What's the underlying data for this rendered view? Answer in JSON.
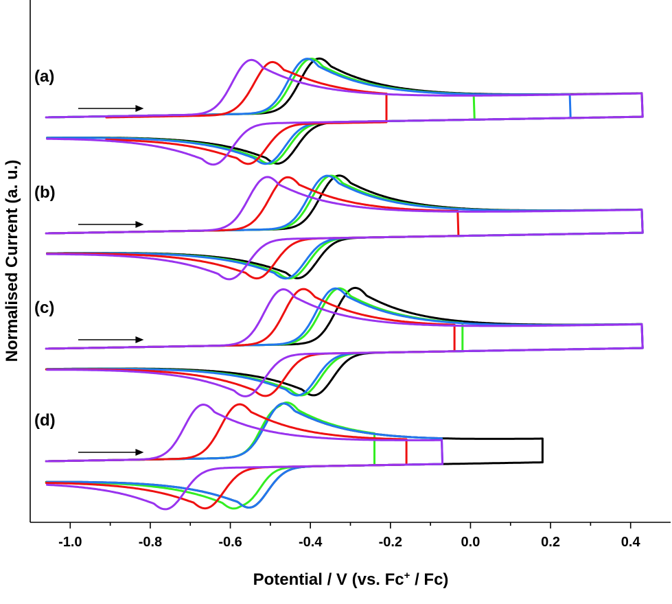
{
  "chart_data": {
    "type": "line",
    "xlabel_main": "Potential / V (vs. Fc",
    "xlabel_sup": "+",
    "xlabel_tail": " / Fc)",
    "ylabel": "Normalised Current (a. u.)",
    "xlim": [
      -1.1,
      0.5
    ],
    "x_ticks": [
      -1.0,
      -0.8,
      -0.6,
      -0.4,
      -0.2,
      0.0,
      0.2,
      0.4
    ],
    "x_tick_labels": [
      "-1.0",
      "-0.8",
      "-0.6",
      "-0.4",
      "-0.2",
      "0.0",
      "0.2",
      "0.4"
    ],
    "y_tick_labels_shown": false,
    "colors": {
      "black": "#000000",
      "red": "#ee1111",
      "purple": "#9933ee",
      "green": "#33ee22",
      "blue": "#2277ee"
    },
    "panels": [
      {
        "label": "(a)",
        "arrow_x": [
          -0.98,
          -0.83
        ],
        "curves": [
          {
            "color": "black",
            "v_start": -1.06,
            "v_end": 0.43,
            "epa": -0.38,
            "epc": -0.48
          },
          {
            "color": "green",
            "v_start": -1.06,
            "v_end": 0.01,
            "epa": -0.4,
            "epc": -0.5
          },
          {
            "color": "blue",
            "v_start": -1.06,
            "v_end": 0.25,
            "epa": -0.41,
            "epc": -0.51
          },
          {
            "color": "red",
            "v_start": -0.91,
            "v_end": -0.21,
            "epa": -0.5,
            "epc": -0.55
          },
          {
            "color": "purple",
            "v_start": -1.06,
            "v_end": 0.43,
            "epa": -0.55,
            "epc": -0.64
          }
        ]
      },
      {
        "label": "(b)",
        "arrow_x": [
          -0.98,
          -0.83
        ],
        "curves": [
          {
            "color": "black",
            "v_start": -1.06,
            "v_end": 0.43,
            "epa": -0.33,
            "epc": -0.43
          },
          {
            "color": "green",
            "v_start": -1.06,
            "v_end": 0.43,
            "epa": -0.35,
            "epc": -0.45
          },
          {
            "color": "blue",
            "v_start": -1.06,
            "v_end": 0.43,
            "epa": -0.36,
            "epc": -0.46
          },
          {
            "color": "red",
            "v_start": -1.06,
            "v_end": -0.03,
            "epa": -0.46,
            "epc": -0.53
          },
          {
            "color": "purple",
            "v_start": -1.06,
            "v_end": 0.43,
            "epa": -0.51,
            "epc": -0.6
          }
        ]
      },
      {
        "label": "(c)",
        "arrow_x": [
          -0.98,
          -0.83
        ],
        "curves": [
          {
            "color": "black",
            "v_start": -1.06,
            "v_end": 0.43,
            "epa": -0.29,
            "epc": -0.39
          },
          {
            "color": "green",
            "v_start": -1.06,
            "v_end": -0.02,
            "epa": -0.33,
            "epc": -0.42
          },
          {
            "color": "blue",
            "v_start": -1.06,
            "v_end": 0.43,
            "epa": -0.34,
            "epc": -0.43
          },
          {
            "color": "red",
            "v_start": -1.06,
            "v_end": -0.04,
            "epa": -0.42,
            "epc": -0.51
          },
          {
            "color": "purple",
            "v_start": -1.06,
            "v_end": 0.43,
            "epa": -0.47,
            "epc": -0.56
          }
        ]
      },
      {
        "label": "(d)",
        "arrow_x": [
          -0.98,
          -0.83
        ],
        "curves": [
          {
            "color": "black",
            "v_start": -1.06,
            "v_end": 0.18,
            "epa": -0.47,
            "epc": -0.55
          },
          {
            "color": "green",
            "v_start": -1.06,
            "v_end": -0.24,
            "epa": -0.46,
            "epc": -0.59
          },
          {
            "color": "blue",
            "v_start": -1.06,
            "v_end": -0.07,
            "epa": -0.47,
            "epc": -0.55
          },
          {
            "color": "red",
            "v_start": -1.06,
            "v_end": -0.16,
            "epa": -0.58,
            "epc": -0.66
          },
          {
            "color": "purple",
            "v_start": -1.06,
            "v_end": -0.07,
            "epa": -0.67,
            "epc": -0.76
          }
        ]
      }
    ]
  }
}
